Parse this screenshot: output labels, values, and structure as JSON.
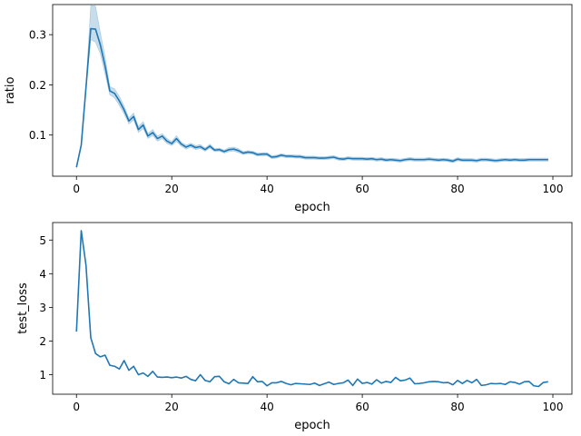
{
  "figure": {
    "background": "#ffffff",
    "line_color": "#1f77b4",
    "band_color": "#1f77b4"
  },
  "chart_data": [
    {
      "type": "line",
      "title": "",
      "xlabel": "epoch",
      "ylabel": "ratio",
      "xlim": [
        -5,
        104
      ],
      "ylim": [
        0.018,
        0.36
      ],
      "xticks": [
        0,
        20,
        40,
        60,
        80,
        100
      ],
      "yticks": [
        0.1,
        0.2,
        0.3
      ],
      "xtick_labels": [
        "0",
        "20",
        "40",
        "60",
        "80",
        "100"
      ],
      "ytick_labels": [
        "0.1",
        "0.2",
        "0.3"
      ],
      "grid": false,
      "legend": "none",
      "confidence_band": true,
      "x": [
        0,
        1,
        2,
        3,
        4,
        5,
        6,
        7,
        8,
        9,
        10,
        11,
        12,
        13,
        14,
        15,
        16,
        17,
        18,
        19,
        20,
        21,
        22,
        23,
        24,
        25,
        26,
        27,
        28,
        29,
        30,
        31,
        32,
        33,
        34,
        35,
        36,
        37,
        38,
        39,
        40,
        41,
        42,
        43,
        44,
        45,
        46,
        47,
        48,
        49,
        50,
        51,
        52,
        53,
        54,
        55,
        56,
        57,
        58,
        59,
        60,
        61,
        62,
        63,
        64,
        65,
        66,
        67,
        68,
        69,
        70,
        71,
        72,
        73,
        74,
        75,
        76,
        77,
        78,
        79,
        80,
        81,
        82,
        83,
        84,
        85,
        86,
        87,
        88,
        89,
        90,
        91,
        92,
        93,
        94,
        95,
        96,
        97,
        98,
        99
      ],
      "y": [
        0.036,
        0.08,
        0.195,
        0.312,
        0.311,
        0.28,
        0.238,
        0.188,
        0.183,
        0.168,
        0.15,
        0.128,
        0.137,
        0.111,
        0.12,
        0.098,
        0.105,
        0.093,
        0.098,
        0.088,
        0.083,
        0.093,
        0.082,
        0.076,
        0.08,
        0.075,
        0.077,
        0.071,
        0.078,
        0.07,
        0.071,
        0.067,
        0.071,
        0.072,
        0.069,
        0.064,
        0.066,
        0.065,
        0.061,
        0.062,
        0.062,
        0.056,
        0.057,
        0.06,
        0.058,
        0.058,
        0.057,
        0.057,
        0.055,
        0.055,
        0.055,
        0.054,
        0.054,
        0.055,
        0.056,
        0.053,
        0.052,
        0.054,
        0.053,
        0.053,
        0.053,
        0.052,
        0.053,
        0.051,
        0.052,
        0.05,
        0.051,
        0.05,
        0.049,
        0.051,
        0.052,
        0.051,
        0.051,
        0.051,
        0.052,
        0.051,
        0.05,
        0.051,
        0.05,
        0.048,
        0.052,
        0.05,
        0.05,
        0.05,
        0.049,
        0.051,
        0.051,
        0.05,
        0.049,
        0.05,
        0.051,
        0.05,
        0.051,
        0.05,
        0.05,
        0.051,
        0.051,
        0.051,
        0.051,
        0.051
      ],
      "y_lower": [
        0.034,
        0.077,
        0.188,
        0.29,
        0.285,
        0.262,
        0.222,
        0.18,
        0.174,
        0.159,
        0.142,
        0.122,
        0.13,
        0.105,
        0.113,
        0.093,
        0.099,
        0.088,
        0.093,
        0.083,
        0.079,
        0.087,
        0.078,
        0.072,
        0.076,
        0.071,
        0.073,
        0.068,
        0.074,
        0.067,
        0.068,
        0.064,
        0.067,
        0.068,
        0.065,
        0.061,
        0.063,
        0.062,
        0.058,
        0.059,
        0.059,
        0.053,
        0.054,
        0.057,
        0.055,
        0.055,
        0.054,
        0.054,
        0.052,
        0.052,
        0.052,
        0.051,
        0.051,
        0.052,
        0.053,
        0.05,
        0.049,
        0.051,
        0.05,
        0.05,
        0.05,
        0.049,
        0.05,
        0.048,
        0.049,
        0.047,
        0.048,
        0.047,
        0.046,
        0.048,
        0.049,
        0.048,
        0.048,
        0.048,
        0.049,
        0.048,
        0.047,
        0.048,
        0.047,
        0.045,
        0.049,
        0.047,
        0.047,
        0.047,
        0.046,
        0.048,
        0.048,
        0.047,
        0.046,
        0.047,
        0.048,
        0.047,
        0.048,
        0.047,
        0.047,
        0.048,
        0.048,
        0.048,
        0.048,
        0.048
      ],
      "y_upper": [
        0.038,
        0.083,
        0.203,
        0.358,
        0.357,
        0.305,
        0.256,
        0.197,
        0.192,
        0.177,
        0.158,
        0.134,
        0.144,
        0.117,
        0.127,
        0.103,
        0.111,
        0.098,
        0.103,
        0.093,
        0.087,
        0.099,
        0.086,
        0.08,
        0.084,
        0.079,
        0.081,
        0.074,
        0.082,
        0.073,
        0.074,
        0.07,
        0.075,
        0.076,
        0.073,
        0.067,
        0.069,
        0.068,
        0.064,
        0.065,
        0.065,
        0.059,
        0.06,
        0.063,
        0.061,
        0.061,
        0.06,
        0.06,
        0.058,
        0.058,
        0.058,
        0.057,
        0.057,
        0.058,
        0.059,
        0.056,
        0.055,
        0.057,
        0.056,
        0.056,
        0.056,
        0.055,
        0.056,
        0.054,
        0.055,
        0.053,
        0.054,
        0.053,
        0.052,
        0.054,
        0.055,
        0.054,
        0.054,
        0.054,
        0.055,
        0.054,
        0.053,
        0.054,
        0.053,
        0.051,
        0.055,
        0.053,
        0.053,
        0.053,
        0.052,
        0.054,
        0.054,
        0.053,
        0.052,
        0.053,
        0.054,
        0.053,
        0.054,
        0.053,
        0.053,
        0.054,
        0.054,
        0.054,
        0.054,
        0.054
      ]
    },
    {
      "type": "line",
      "title": "",
      "xlabel": "epoch",
      "ylabel": "test_loss",
      "xlim": [
        -5,
        104
      ],
      "ylim": [
        0.42,
        5.52
      ],
      "xticks": [
        0,
        20,
        40,
        60,
        80,
        100
      ],
      "yticks": [
        1,
        2,
        3,
        4,
        5
      ],
      "xtick_labels": [
        "0",
        "20",
        "40",
        "60",
        "80",
        "100"
      ],
      "ytick_labels": [
        "1",
        "2",
        "3",
        "4",
        "5"
      ],
      "grid": false,
      "legend": "none",
      "confidence_band": false,
      "x": [
        0,
        1,
        2,
        3,
        4,
        5,
        6,
        7,
        8,
        9,
        10,
        11,
        12,
        13,
        14,
        15,
        16,
        17,
        18,
        19,
        20,
        21,
        22,
        23,
        24,
        25,
        26,
        27,
        28,
        29,
        30,
        31,
        32,
        33,
        34,
        35,
        36,
        37,
        38,
        39,
        40,
        41,
        42,
        43,
        44,
        45,
        46,
        47,
        48,
        49,
        50,
        51,
        52,
        53,
        54,
        55,
        56,
        57,
        58,
        59,
        60,
        61,
        62,
        63,
        64,
        65,
        66,
        67,
        68,
        69,
        70,
        71,
        72,
        73,
        74,
        75,
        76,
        77,
        78,
        79,
        80,
        81,
        82,
        83,
        84,
        85,
        86,
        87,
        88,
        89,
        90,
        91,
        92,
        93,
        94,
        95,
        96,
        97,
        98,
        99
      ],
      "y": [
        2.28,
        5.28,
        4.25,
        2.1,
        1.63,
        1.53,
        1.58,
        1.28,
        1.25,
        1.17,
        1.42,
        1.13,
        1.25,
        1.0,
        1.05,
        0.95,
        1.1,
        0.93,
        0.92,
        0.93,
        0.91,
        0.93,
        0.9,
        0.95,
        0.86,
        0.82,
        1.0,
        0.83,
        0.79,
        0.94,
        0.95,
        0.79,
        0.73,
        0.86,
        0.76,
        0.75,
        0.74,
        0.94,
        0.79,
        0.8,
        0.67,
        0.76,
        0.76,
        0.8,
        0.74,
        0.7,
        0.74,
        0.73,
        0.72,
        0.71,
        0.75,
        0.68,
        0.73,
        0.78,
        0.71,
        0.74,
        0.76,
        0.84,
        0.68,
        0.87,
        0.74,
        0.77,
        0.72,
        0.85,
        0.75,
        0.8,
        0.77,
        0.92,
        0.82,
        0.84,
        0.9,
        0.73,
        0.74,
        0.76,
        0.79,
        0.8,
        0.79,
        0.76,
        0.77,
        0.7,
        0.83,
        0.74,
        0.83,
        0.76,
        0.86,
        0.68,
        0.7,
        0.74,
        0.73,
        0.74,
        0.71,
        0.79,
        0.77,
        0.72,
        0.79,
        0.8,
        0.67,
        0.65,
        0.77,
        0.79
      ]
    }
  ]
}
